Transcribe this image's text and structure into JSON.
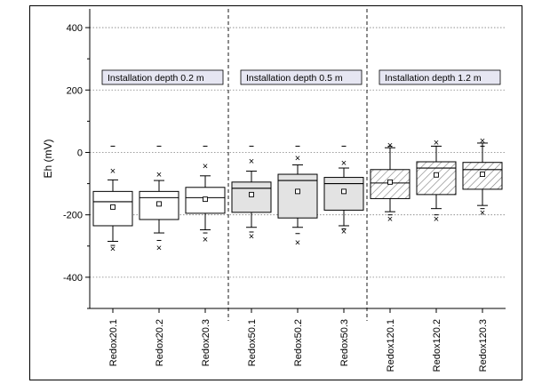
{
  "chart_data": {
    "type": "box",
    "ylabel": "Eh (mV)",
    "ylim": [
      -500,
      460
    ],
    "yticks": [
      400,
      200,
      0,
      -200,
      -400
    ],
    "grid": "horizontal dotted",
    "categories": [
      "Redox20.1",
      "Redox20.2",
      "Redox20.3",
      "Redox50.1",
      "Redox50.2",
      "Redox50.3",
      "Redox120.1",
      "Redox120.2",
      "Redox120.3"
    ],
    "groups": [
      {
        "label": "Installation depth 0.2 m",
        "fill": "white",
        "members": [
          0,
          1,
          2
        ]
      },
      {
        "label": "Installation depth 0.5 m",
        "fill": "gray",
        "members": [
          3,
          4,
          5
        ]
      },
      {
        "label": "Installation depth 1.2 m",
        "fill": "hatched",
        "members": [
          6,
          7,
          8
        ]
      }
    ],
    "boxes": [
      {
        "name": "Redox20.1",
        "whisker_low": -285,
        "q1": -235,
        "median": -158,
        "q3": -125,
        "whisker_high": -88,
        "mean": -175,
        "min": -310,
        "max": -62,
        "p1": -298,
        "p99": -300,
        "top_dash": 20
      },
      {
        "name": "Redox20.2",
        "whisker_low": -258,
        "q1": -215,
        "median": -145,
        "q3": -125,
        "whisker_high": -90,
        "mean": -165,
        "min": -308,
        "max": -72,
        "p1": -282,
        "p99": -283,
        "top_dash": 20
      },
      {
        "name": "Redox20.3",
        "whisker_low": -248,
        "q1": -195,
        "median": -145,
        "q3": -112,
        "whisker_high": -75,
        "mean": -150,
        "min": -280,
        "max": -45,
        "p1": -258,
        "p99": -262,
        "top_dash": 20
      },
      {
        "name": "Redox50.1",
        "whisker_low": -240,
        "q1": -192,
        "median": -115,
        "q3": -95,
        "whisker_high": -60,
        "mean": -135,
        "min": -270,
        "max": -30,
        "p1": -255,
        "p99": -258,
        "top_dash": 20
      },
      {
        "name": "Redox50.2",
        "whisker_low": -240,
        "q1": -210,
        "median": -90,
        "q3": -70,
        "whisker_high": -40,
        "mean": -125,
        "min": -290,
        "max": -20,
        "p1": -260,
        "p99": -265,
        "top_dash": 20
      },
      {
        "name": "Redox50.3",
        "whisker_low": -235,
        "q1": -185,
        "median": -100,
        "q3": -80,
        "whisker_high": -50,
        "mean": -125,
        "min": -255,
        "max": -35,
        "p1": -245,
        "p99": -248,
        "top_dash": 20
      },
      {
        "name": "Redox120.1",
        "whisker_low": -190,
        "q1": -148,
        "median": -98,
        "q3": -55,
        "whisker_high": 15,
        "mean": -95,
        "min": -215,
        "max": 22,
        "p1": -200,
        "p99": -202,
        "top_dash": 20
      },
      {
        "name": "Redox120.2",
        "whisker_low": -180,
        "q1": -135,
        "median": -50,
        "q3": -30,
        "whisker_high": 20,
        "mean": -72,
        "min": -215,
        "max": 30,
        "p1": -200,
        "p99": -202,
        "top_dash": 20
      },
      {
        "name": "Redox120.3",
        "whisker_low": -170,
        "q1": -118,
        "median": -55,
        "q3": -32,
        "whisker_high": 30,
        "mean": -70,
        "min": -195,
        "max": 35,
        "p1": -180,
        "p99": -182,
        "top_dash": 20
      }
    ]
  }
}
